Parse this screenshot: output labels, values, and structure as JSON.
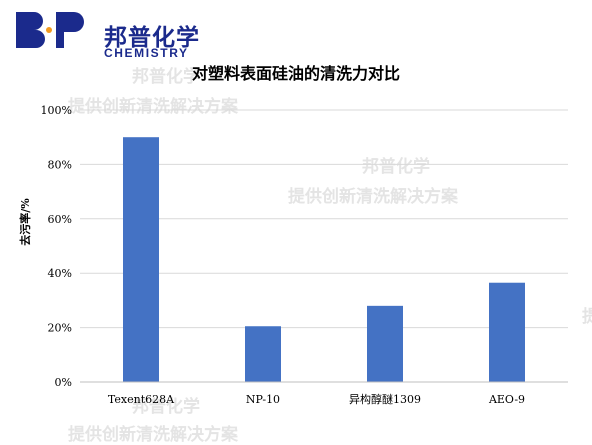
{
  "brand": {
    "name_cn": "邦普化学",
    "name_en": "CHEMISTRY",
    "colors": {
      "navy": "#1b2a8c",
      "orange": "#f39a1e"
    }
  },
  "watermark": {
    "line1": "邦普化学",
    "line2": "提供创新清洗解决方案"
  },
  "chart_data": {
    "type": "bar",
    "title": "对塑料表面硅油的清洗力对比",
    "xlabel": "",
    "ylabel": "去污率/%",
    "categories": [
      "Texent628A",
      "NP-10",
      "异构醇醚1309",
      "AEO-9"
    ],
    "values": [
      90,
      20.5,
      28,
      36.5
    ],
    "ylim": [
      0,
      100
    ],
    "yticks": [
      "0%",
      "20%",
      "40%",
      "60%",
      "80%",
      "100%"
    ],
    "bar_color": "#4472c4",
    "grid": true,
    "legend": "none"
  }
}
